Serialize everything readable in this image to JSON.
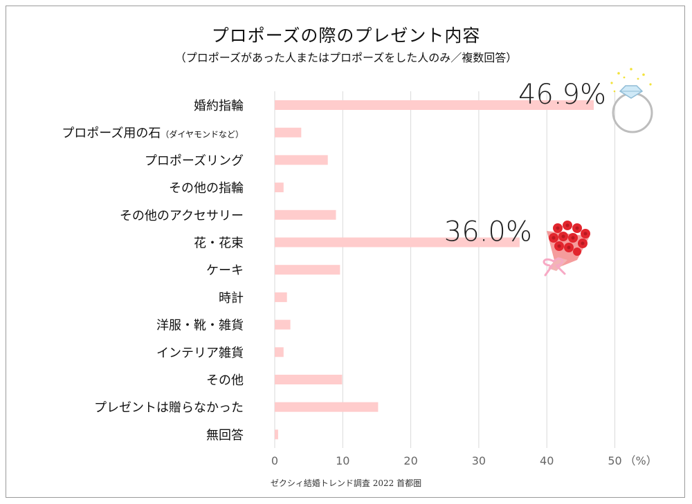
{
  "chart_data": {
    "type": "bar",
    "orientation": "horizontal",
    "title": "プロポーズの際のプレゼント内容",
    "subtitle": "（プロポーズがあった人またはプロポーズをした人のみ／複数回答）",
    "categories": [
      {
        "main": "婚約指輪",
        "sub": ""
      },
      {
        "main": "プロポーズ用の石",
        "sub": "（ダイヤモンドなど）"
      },
      {
        "main": "プロポーズリング",
        "sub": ""
      },
      {
        "main": "その他の指輪",
        "sub": ""
      },
      {
        "main": "その他のアクセサリー",
        "sub": ""
      },
      {
        "main": "花・花束",
        "sub": ""
      },
      {
        "main": "ケーキ",
        "sub": ""
      },
      {
        "main": "時計",
        "sub": ""
      },
      {
        "main": "洋服・靴・雑貨",
        "sub": ""
      },
      {
        "main": "インテリア雑貨",
        "sub": ""
      },
      {
        "main": "その他",
        "sub": ""
      },
      {
        "main": "プレゼントは贈らなかった",
        "sub": ""
      },
      {
        "main": "無回答",
        "sub": ""
      }
    ],
    "values": [
      46.9,
      3.9,
      7.8,
      1.3,
      9.0,
      36.0,
      9.6,
      1.8,
      2.3,
      1.3,
      9.9,
      15.2,
      0.5
    ],
    "data_labels": [
      {
        "index": 0,
        "text": "46.9%"
      },
      {
        "index": 5,
        "text": "36.0%"
      }
    ],
    "xlim": [
      0,
      50
    ],
    "xticks": [
      0,
      10,
      20,
      30,
      40,
      50
    ],
    "xunit": "（%）",
    "grid": true,
    "bar_color": "#ffcccc",
    "grid_color": "#d9d9d9",
    "source": "ゼクシィ結婚トレンド調査 2022 首都圏"
  },
  "decorations": {
    "ring_icon": "diamond-ring-icon",
    "bouquet_icon": "rose-bouquet-icon",
    "rose_color": "#e2262e",
    "ribbon_color": "#f7a9c4"
  }
}
